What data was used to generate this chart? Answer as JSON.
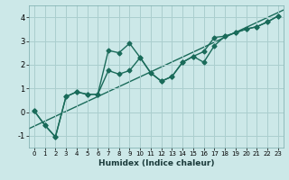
{
  "xlabel": "Humidex (Indice chaleur)",
  "background_color": "#cce8e8",
  "grid_color": "#aacece",
  "line_color": "#1a6b5a",
  "xlim": [
    -0.5,
    23.5
  ],
  "ylim": [
    -1.5,
    4.5
  ],
  "yticks": [
    -1,
    0,
    1,
    2,
    3,
    4
  ],
  "xticks": [
    0,
    1,
    2,
    3,
    4,
    5,
    6,
    7,
    8,
    9,
    10,
    11,
    12,
    13,
    14,
    15,
    16,
    17,
    18,
    19,
    20,
    21,
    22,
    23
  ],
  "line1_x": [
    0,
    1,
    2,
    3,
    4,
    5,
    6,
    7,
    8,
    9,
    10,
    11,
    12,
    13,
    14,
    15,
    16,
    17,
    18,
    19,
    20,
    21,
    22,
    23
  ],
  "line1_y": [
    0.05,
    -0.55,
    -1.05,
    0.65,
    0.85,
    0.75,
    0.75,
    2.6,
    2.5,
    2.9,
    2.3,
    1.65,
    1.3,
    1.5,
    2.1,
    2.35,
    2.55,
    3.15,
    3.2,
    3.35,
    3.5,
    3.6,
    3.8,
    4.05
  ],
  "line2_x": [
    0,
    1,
    2,
    3,
    4,
    5,
    6,
    7,
    8,
    9,
    10,
    11,
    12,
    13,
    14,
    15,
    16,
    17,
    18,
    19,
    20,
    21,
    22,
    23
  ],
  "line2_y": [
    0.05,
    -0.55,
    -1.05,
    0.65,
    0.85,
    0.75,
    0.75,
    1.75,
    1.6,
    1.75,
    2.3,
    1.65,
    1.3,
    1.5,
    2.1,
    2.35,
    2.1,
    2.8,
    3.2,
    3.35,
    3.5,
    3.6,
    3.8,
    4.05
  ],
  "line3_x": [
    -0.5,
    23.5
  ],
  "line3_y": [
    -0.7,
    4.3
  ],
  "marker_style": "D",
  "marker_size": 2.5,
  "line_width": 1.0
}
